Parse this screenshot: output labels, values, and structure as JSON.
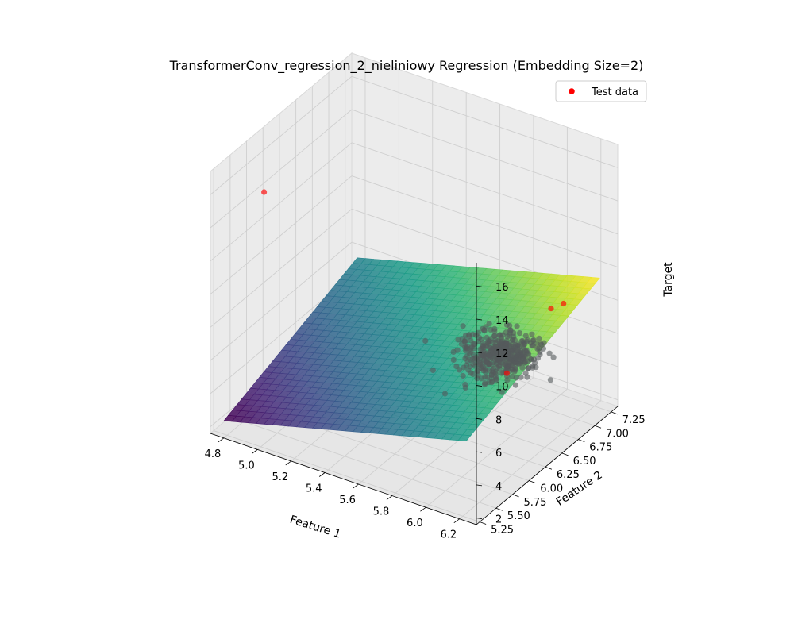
{
  "chart_data": {
    "type": "3d-surface-scatter",
    "title": "TransformerConv_regression_2_nieliniowy Regression (Embedding Size=2)",
    "xlabel": "Feature 1",
    "ylabel": "Feature 2",
    "zlabel": "Target",
    "xlim": [
      4.72,
      6.3
    ],
    "ylim": [
      5.2,
      7.35
    ],
    "zlim": [
      1.6,
      17.4
    ],
    "x_ticks": [
      "4.8",
      "5.0",
      "5.2",
      "5.4",
      "5.6",
      "5.8",
      "6.0",
      "6.2"
    ],
    "y_ticks": [
      "5.25",
      "5.50",
      "5.75",
      "6.00",
      "6.25",
      "6.50",
      "6.75",
      "7.00",
      "7.25"
    ],
    "z_ticks": [
      "2",
      "4",
      "6",
      "8",
      "10",
      "12",
      "14",
      "16"
    ],
    "grid": true,
    "legend": {
      "position": "upper-right",
      "entries": [
        "Test data"
      ]
    },
    "surface": {
      "colormap": "viridis",
      "z_at_corners": {
        "x_min_y_min": 2.4,
        "x_max_y_min": 6.2,
        "x_min_y_max": 5.5,
        "x_max_y_max": 9.3
      }
    },
    "series": [
      {
        "name": "Test data",
        "color": "#ff0000",
        "points": [
          {
            "x": 5.0,
            "y": 5.3,
            "z": 16.8
          },
          {
            "x": 6.06,
            "y": 6.95,
            "z": 8.0
          },
          {
            "x": 6.13,
            "y": 6.96,
            "z": 8.5
          },
          {
            "x": 6.2,
            "y": 5.92,
            "z": 8.0
          }
        ]
      }
    ],
    "cluster": {
      "center_x": 5.95,
      "center_y": 6.45,
      "center_z": 6.5,
      "spread_x": 0.1,
      "spread_y": 0.17,
      "count": 420
    }
  }
}
